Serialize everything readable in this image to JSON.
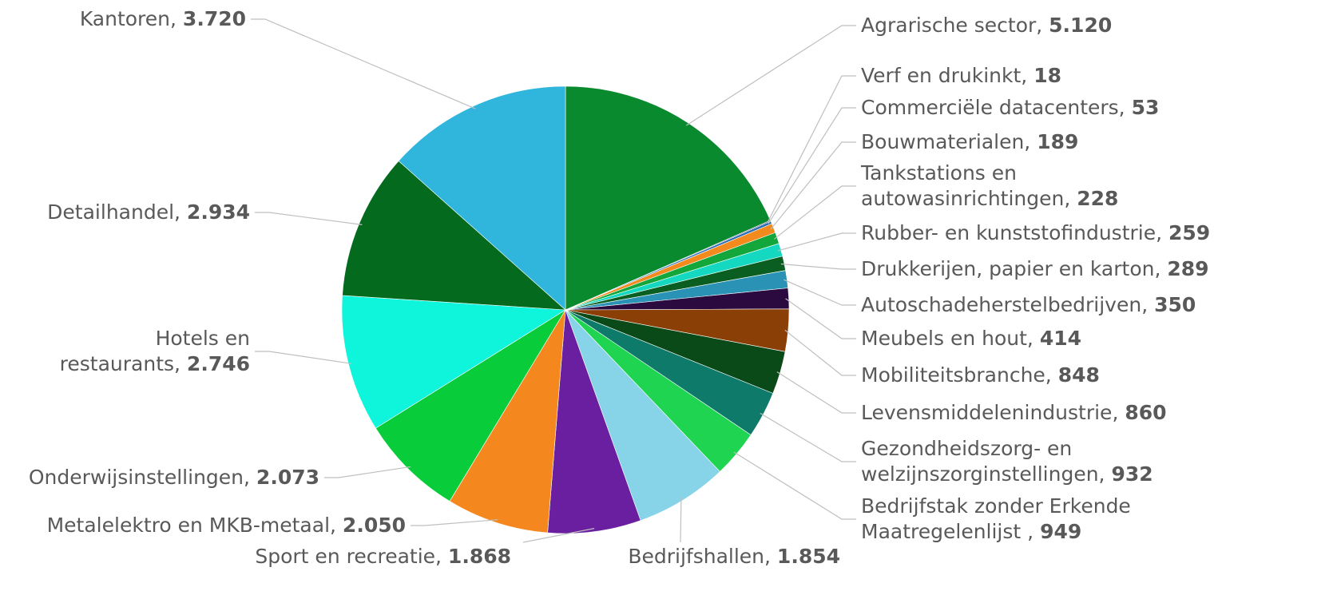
{
  "chart_data": {
    "type": "pie",
    "title": "",
    "slices": [
      {
        "label": "Agrarische sector",
        "value_text": "5.120",
        "value": 5120,
        "color": "#0a8a2e"
      },
      {
        "label": "Verf en drukinkt",
        "value_text": "18",
        "value": 18,
        "color": "#3a1f6e"
      },
      {
        "label": "Commerciële datacenters",
        "value_text": "53",
        "value": 53,
        "color": "#2a6fb5"
      },
      {
        "label": "Bouwmaterialen",
        "value_text": "189",
        "value": 189,
        "color": "#f28a1e"
      },
      {
        "label": "Tankstations en autowasinrichtingen",
        "value_text": "228",
        "value": 228,
        "color": "#13a63a"
      },
      {
        "label": "Rubber- en kunststofindustrie",
        "value_text": "259",
        "value": 259,
        "color": "#14d9c0"
      },
      {
        "label": "Drukkerijen, papier en karton",
        "value_text": "289",
        "value": 289,
        "color": "#0b5e22"
      },
      {
        "label": "Autoschadeherstelbedrijven",
        "value_text": "350",
        "value": 350,
        "color": "#2a93b5"
      },
      {
        "label": "Meubels en hout",
        "value_text": "414",
        "value": 414,
        "color": "#2b0a40"
      },
      {
        "label": "Mobiliteitsbranche",
        "value_text": "848",
        "value": 848,
        "color": "#8a3f07"
      },
      {
        "label": "Levensmiddelenindustrie",
        "value_text": "860",
        "value": 860,
        "color": "#0a4a18"
      },
      {
        "label": "Gezondheidszorg- en welzijnszorginstellingen",
        "value_text": "932",
        "value": 932,
        "color": "#0e7a6a"
      },
      {
        "label": "Bedrijfstak zonder Erkende Maatregelenlijst",
        "value_text": "949",
        "value": 949,
        "color": "#1ed450"
      },
      {
        "label": "Bedrijfshallen",
        "value_text": "1.854",
        "value": 1854,
        "color": "#87d3e8"
      },
      {
        "label": "Sport en recreatie",
        "value_text": "1.868",
        "value": 1868,
        "color": "#6a1fa0"
      },
      {
        "label": "Metalelektro en MKB-metaal",
        "value_text": "2.050",
        "value": 2050,
        "color": "#f5871f"
      },
      {
        "label": "Onderwijsinstellingen",
        "value_text": "2.073",
        "value": 2073,
        "color": "#08cc3a"
      },
      {
        "label": "Hotels en restaurants",
        "value_text": "2.746",
        "value": 2746,
        "color": "#0ff5dc"
      },
      {
        "label": "Detailhandel",
        "value_text": "2.934",
        "value": 2934,
        "color": "#046b1e"
      },
      {
        "label": "Kantoren",
        "value_text": "3.720",
        "value": 3720,
        "color": "#30b5dc"
      }
    ],
    "legend": "none",
    "labels": "outside with leader lines"
  }
}
